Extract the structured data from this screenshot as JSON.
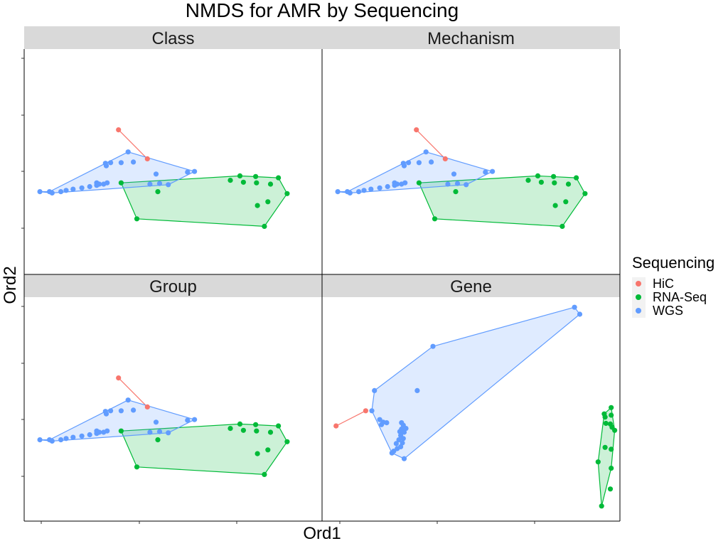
{
  "colors": {
    "HiC": "#F8766D",
    "RNA-Seq": "#00BA38",
    "WGS": "#619CFF",
    "strip_bg": "#D9D9D9",
    "hull_fill_alpha": 0.2
  },
  "chart_data": {
    "type": "scatter",
    "title": "NMDS for AMR by Sequencing",
    "xlabel": "Ord1",
    "ylabel": "Ord2",
    "tick_labels_shown": false,
    "legend": {
      "title": "Sequencing",
      "entries": [
        "HiC",
        "RNA-Seq",
        "WGS"
      ],
      "placement": "right"
    },
    "panels": [
      {
        "name": "Class",
        "xlim": [
          -0.86,
          2.55
        ],
        "ylim": [
          -1.42,
          2.14
        ],
        "series": [
          {
            "name": "HiC",
            "hull": [
              [
                0.22,
                0.86
              ],
              [
                0.55,
                0.4
              ]
            ],
            "points": [
              [
                0.22,
                0.86
              ],
              [
                0.55,
                0.4
              ]
            ]
          },
          {
            "name": "RNA-Seq",
            "hull": [
              [
                0.25,
                0.02
              ],
              [
                1.61,
                0.13
              ],
              [
                2.05,
                0.1
              ],
              [
                2.15,
                -0.15
              ],
              [
                1.89,
                -0.67
              ],
              [
                0.43,
                -0.55
              ]
            ],
            "points": [
              [
                0.25,
                0.02
              ],
              [
                1.61,
                0.13
              ],
              [
                1.79,
                0.12
              ],
              [
                2.05,
                0.1
              ],
              [
                1.5,
                0.06
              ],
              [
                1.65,
                0.03
              ],
              [
                1.8,
                0.02
              ],
              [
                1.96,
                0.0
              ],
              [
                0.67,
                -0.12
              ],
              [
                2.15,
                -0.15
              ],
              [
                1.93,
                -0.28
              ],
              [
                1.81,
                -0.34
              ],
              [
                0.43,
                -0.55
              ],
              [
                1.89,
                -0.67
              ]
            ]
          },
          {
            "name": "WGS",
            "hull": [
              [
                -0.57,
                -0.12
              ],
              [
                0.33,
                0.51
              ],
              [
                1.09,
                0.2
              ],
              [
                0.79,
                -0.01
              ],
              [
                -0.54,
                -0.14
              ],
              [
                -0.68,
                -0.12
              ]
            ],
            "points": [
              [
                0.33,
                0.51
              ],
              [
                0.39,
                0.35
              ],
              [
                0.25,
                0.34
              ],
              [
                0.13,
                0.34
              ],
              [
                0.07,
                0.33
              ],
              [
                0.08,
                0.29
              ],
              [
                1.01,
                0.19
              ],
              [
                1.09,
                0.2
              ],
              [
                0.65,
                0.16
              ],
              [
                0.79,
                -0.01
              ],
              [
                0.58,
                0.0
              ],
              [
                0.69,
                0.01
              ],
              [
                0.09,
                0.02
              ],
              [
                0.05,
                0.0
              ],
              [
                -0.03,
                -0.02
              ],
              [
                -0.11,
                -0.04
              ],
              [
                -0.2,
                -0.06
              ],
              [
                -0.3,
                -0.08
              ],
              [
                -0.38,
                -0.1
              ],
              [
                -0.44,
                -0.12
              ],
              [
                -0.54,
                -0.14
              ],
              [
                -0.57,
                -0.12
              ],
              [
                -0.68,
                -0.12
              ],
              [
                -0.03,
                0.02
              ],
              [
                0.0,
                0.0
              ]
            ]
          }
        ]
      },
      {
        "name": "Mechanism",
        "xlim": [
          -0.86,
          2.55
        ],
        "ylim": [
          -1.42,
          2.14
        ],
        "series": [
          {
            "name": "HiC",
            "hull": [
              [
                0.22,
                0.86
              ],
              [
                0.55,
                0.4
              ]
            ],
            "points": [
              [
                0.22,
                0.86
              ],
              [
                0.55,
                0.4
              ]
            ]
          },
          {
            "name": "RNA-Seq",
            "hull": [
              [
                0.25,
                0.02
              ],
              [
                1.61,
                0.13
              ],
              [
                2.05,
                0.1
              ],
              [
                2.15,
                -0.15
              ],
              [
                1.89,
                -0.67
              ],
              [
                0.43,
                -0.55
              ]
            ],
            "points": [
              [
                0.25,
                0.02
              ],
              [
                1.61,
                0.13
              ],
              [
                1.79,
                0.12
              ],
              [
                2.05,
                0.1
              ],
              [
                1.5,
                0.06
              ],
              [
                1.65,
                0.03
              ],
              [
                1.8,
                0.02
              ],
              [
                1.96,
                0.0
              ],
              [
                0.67,
                -0.12
              ],
              [
                2.15,
                -0.15
              ],
              [
                1.93,
                -0.28
              ],
              [
                1.81,
                -0.34
              ],
              [
                0.43,
                -0.55
              ],
              [
                1.89,
                -0.67
              ]
            ]
          },
          {
            "name": "WGS",
            "hull": [
              [
                -0.57,
                -0.12
              ],
              [
                0.33,
                0.51
              ],
              [
                1.09,
                0.2
              ],
              [
                0.79,
                -0.01
              ],
              [
                -0.54,
                -0.14
              ],
              [
                -0.68,
                -0.12
              ]
            ],
            "points": [
              [
                0.33,
                0.51
              ],
              [
                0.39,
                0.35
              ],
              [
                0.25,
                0.34
              ],
              [
                0.13,
                0.34
              ],
              [
                0.07,
                0.33
              ],
              [
                0.08,
                0.29
              ],
              [
                1.01,
                0.19
              ],
              [
                1.09,
                0.2
              ],
              [
                0.65,
                0.16
              ],
              [
                0.79,
                -0.01
              ],
              [
                0.58,
                0.0
              ],
              [
                0.69,
                0.01
              ],
              [
                0.09,
                0.02
              ],
              [
                0.05,
                0.0
              ],
              [
                -0.03,
                -0.02
              ],
              [
                -0.11,
                -0.04
              ],
              [
                -0.2,
                -0.06
              ],
              [
                -0.3,
                -0.08
              ],
              [
                -0.38,
                -0.1
              ],
              [
                -0.44,
                -0.12
              ],
              [
                -0.54,
                -0.14
              ],
              [
                -0.57,
                -0.12
              ],
              [
                -0.68,
                -0.12
              ],
              [
                -0.03,
                0.02
              ],
              [
                0.0,
                0.0
              ]
            ]
          }
        ]
      },
      {
        "name": "Group",
        "xlim": [
          -0.86,
          2.55
        ],
        "ylim": [
          -1.42,
          2.14
        ],
        "series": [
          {
            "name": "HiC",
            "hull": [
              [
                0.22,
                0.86
              ],
              [
                0.55,
                0.4
              ]
            ],
            "points": [
              [
                0.22,
                0.86
              ],
              [
                0.55,
                0.4
              ]
            ]
          },
          {
            "name": "RNA-Seq",
            "hull": [
              [
                0.25,
                0.02
              ],
              [
                1.61,
                0.13
              ],
              [
                2.05,
                0.1
              ],
              [
                2.15,
                -0.15
              ],
              [
                1.89,
                -0.67
              ],
              [
                0.43,
                -0.55
              ]
            ],
            "points": [
              [
                0.25,
                0.02
              ],
              [
                1.61,
                0.13
              ],
              [
                1.79,
                0.12
              ],
              [
                2.05,
                0.1
              ],
              [
                1.5,
                0.06
              ],
              [
                1.65,
                0.03
              ],
              [
                1.8,
                0.02
              ],
              [
                1.96,
                0.0
              ],
              [
                0.67,
                -0.12
              ],
              [
                2.15,
                -0.15
              ],
              [
                1.93,
                -0.28
              ],
              [
                1.81,
                -0.34
              ],
              [
                0.43,
                -0.55
              ],
              [
                1.89,
                -0.67
              ]
            ]
          },
          {
            "name": "WGS",
            "hull": [
              [
                -0.57,
                -0.12
              ],
              [
                0.33,
                0.51
              ],
              [
                1.09,
                0.2
              ],
              [
                0.79,
                -0.01
              ],
              [
                -0.54,
                -0.14
              ],
              [
                -0.68,
                -0.12
              ]
            ],
            "points": [
              [
                0.33,
                0.51
              ],
              [
                0.39,
                0.35
              ],
              [
                0.25,
                0.34
              ],
              [
                0.13,
                0.34
              ],
              [
                0.07,
                0.33
              ],
              [
                0.08,
                0.29
              ],
              [
                1.01,
                0.19
              ],
              [
                1.09,
                0.2
              ],
              [
                0.65,
                0.16
              ],
              [
                0.79,
                -0.01
              ],
              [
                0.58,
                0.0
              ],
              [
                0.69,
                0.01
              ],
              [
                0.09,
                0.02
              ],
              [
                0.05,
                0.0
              ],
              [
                -0.03,
                -0.02
              ],
              [
                -0.11,
                -0.04
              ],
              [
                -0.2,
                -0.06
              ],
              [
                -0.3,
                -0.08
              ],
              [
                -0.38,
                -0.1
              ],
              [
                -0.44,
                -0.12
              ],
              [
                -0.54,
                -0.14
              ],
              [
                -0.57,
                -0.12
              ],
              [
                -0.68,
                -0.12
              ],
              [
                -0.03,
                0.02
              ],
              [
                0.0,
                0.0
              ]
            ]
          }
        ]
      },
      {
        "name": "Gene",
        "xlim": [
          -0.86,
          2.55
        ],
        "ylim": [
          -1.42,
          2.14
        ],
        "series": [
          {
            "name": "HiC",
            "hull": [
              [
                -0.7,
                0.1
              ],
              [
                -0.36,
                0.34
              ]
            ],
            "points": [
              [
                -0.7,
                0.1
              ],
              [
                -0.36,
                0.34
              ]
            ]
          },
          {
            "name": "RNA-Seq",
            "hull": [
              [
                2.37,
                0.29
              ],
              [
                2.45,
                0.39
              ],
              [
                2.49,
                0.03
              ],
              [
                2.45,
                -0.57
              ],
              [
                2.34,
                -1.17
              ],
              [
                2.3,
                -0.47
              ]
            ],
            "points": [
              [
                2.45,
                0.39
              ],
              [
                2.37,
                0.29
              ],
              [
                2.38,
                0.24
              ],
              [
                2.45,
                0.27
              ],
              [
                2.39,
                0.14
              ],
              [
                2.44,
                0.13
              ],
              [
                2.46,
                0.08
              ],
              [
                2.49,
                0.03
              ],
              [
                2.38,
                -0.24
              ],
              [
                2.45,
                -0.27
              ],
              [
                2.3,
                -0.47
              ],
              [
                2.45,
                -0.57
              ],
              [
                2.44,
                -0.9
              ],
              [
                2.34,
                -1.17
              ]
            ]
          },
          {
            "name": "WGS",
            "hull": [
              [
                -0.26,
                0.66
              ],
              [
                0.41,
                1.36
              ],
              [
                2.03,
                1.98
              ],
              [
                2.09,
                1.87
              ],
              [
                0.08,
                -0.42
              ],
              [
                -0.06,
                -0.33
              ],
              [
                -0.29,
                0.34
              ]
            ],
            "points": [
              [
                2.03,
                1.98
              ],
              [
                2.09,
                1.87
              ],
              [
                0.41,
                1.36
              ],
              [
                0.23,
                0.66
              ],
              [
                -0.26,
                0.66
              ],
              [
                -0.29,
                0.34
              ],
              [
                -0.2,
                0.2
              ],
              [
                -0.16,
                0.16
              ],
              [
                -0.12,
                0.15
              ],
              [
                -0.18,
                0.12
              ],
              [
                0.05,
                0.15
              ],
              [
                0.07,
                0.11
              ],
              [
                0.05,
                0.05
              ],
              [
                0.1,
                0.06
              ],
              [
                0.03,
                0.01
              ],
              [
                0.08,
                0.0
              ],
              [
                0.04,
                -0.05
              ],
              [
                0.07,
                -0.1
              ],
              [
                0.02,
                -0.12
              ],
              [
                0.06,
                -0.17
              ],
              [
                -0.01,
                -0.18
              ],
              [
                0.04,
                -0.23
              ],
              [
                0.0,
                -0.26
              ],
              [
                -0.04,
                -0.3
              ],
              [
                -0.06,
                -0.33
              ],
              [
                0.08,
                -0.42
              ]
            ]
          }
        ]
      }
    ]
  }
}
